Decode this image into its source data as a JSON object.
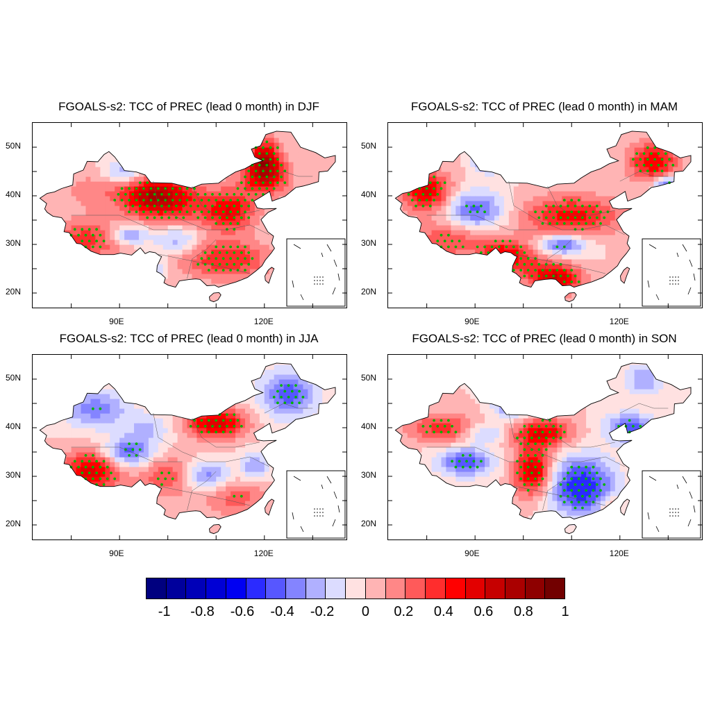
{
  "panels": [
    {
      "title": "FGOALS-s2: TCC of PREC (lead 0 month) in DJF",
      "season": "DJF"
    },
    {
      "title": "FGOALS-s2: TCC of PREC (lead 0 month) in MAM",
      "season": "MAM"
    },
    {
      "title": "FGOALS-s2: TCC of PREC (lead 0 month) in JJA",
      "season": "JJA"
    },
    {
      "title": "FGOALS-s2: TCC of PREC (lead 0 month) in SON",
      "season": "SON"
    }
  ],
  "axes": {
    "lat_labels": [
      "50N",
      "40N",
      "30N",
      "20N"
    ],
    "lon_labels": [
      "90E",
      "120E"
    ],
    "lon_range": [
      72,
      137
    ],
    "lat_range": [
      17,
      55
    ]
  },
  "colorbar": {
    "labels": [
      "-1",
      "-0.8",
      "-0.6",
      "-0.4",
      "-0.2",
      "0",
      "0.2",
      "0.4",
      "0.6",
      "0.8",
      "1"
    ],
    "colors": [
      "#00007f",
      "#00009c",
      "#0000b8",
      "#0000d5",
      "#0000f2",
      "#2b2bff",
      "#5757ff",
      "#8484ff",
      "#b0b0ff",
      "#dcdcff",
      "#ffe1e1",
      "#ffb4b4",
      "#ff8787",
      "#ff5a5a",
      "#ff2d2d",
      "#ff0000",
      "#e30000",
      "#c60000",
      "#aa0000",
      "#8e0000",
      "#720000"
    ]
  },
  "stipple_color": "#00b400"
}
